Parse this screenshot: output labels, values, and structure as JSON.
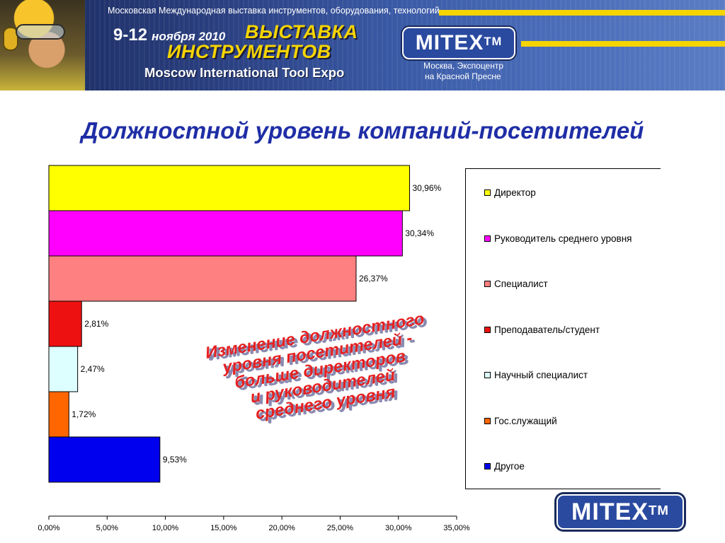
{
  "banner": {
    "subtitle": "Московская Международная выставка инструментов, оборудования, технологий",
    "dates_days": "9-12",
    "dates_month_year": "ноября 2010",
    "headline_line1": "ВЫСТАВКА",
    "headline_line2": "ИНСТРУМЕНТОВ",
    "english_name": "Moscow International Tool Expo",
    "logo_text": "MITEX",
    "logo_tm": "TM",
    "venue_line1": "Москва, Экспоцентр",
    "venue_line2": "на Красной Пресне"
  },
  "title": "Должностной уровень компаний-посетителей",
  "annotation": [
    "Изменение должностного",
    "уровня посетителей -",
    "больше директоров",
    "и руководителей",
    "среднего уровня"
  ],
  "bottom_logo": {
    "text": "MITEX",
    "tm": "TM"
  },
  "chart_data": {
    "type": "bar",
    "orientation": "horizontal",
    "categories": [
      "Директор",
      "Руководитель среднего уровня",
      "Специалист",
      "Преподаватель/студент",
      "Научный специалист",
      "Гос.служащий",
      "Другое"
    ],
    "values": [
      30.96,
      30.34,
      26.37,
      2.81,
      2.47,
      1.72,
      9.53
    ],
    "value_labels": [
      "30,96%",
      "30,34%",
      "26,37%",
      "2,81%",
      "2,47%",
      "1,72%",
      "9,53%"
    ],
    "colors": [
      "#ffff00",
      "#ff00ff",
      "#ff8080",
      "#ee1111",
      "#ddffff",
      "#ff6600",
      "#0000ee"
    ],
    "xlim": [
      0,
      35
    ],
    "xticks": [
      0,
      5,
      10,
      15,
      20,
      25,
      30,
      35
    ],
    "xtick_labels": [
      "0,00%",
      "5,00%",
      "10,00%",
      "15,00%",
      "20,00%",
      "25,00%",
      "30,00%",
      "35,00%"
    ],
    "legend_position": "right",
    "grid": false
  }
}
